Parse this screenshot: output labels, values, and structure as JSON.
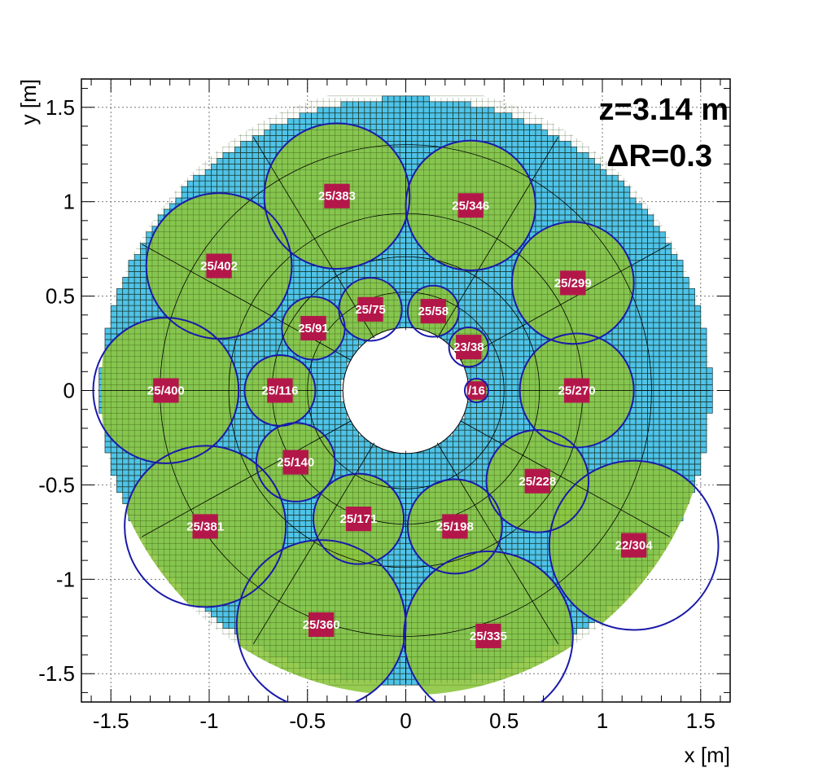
{
  "chart_data": {
    "type": "scatter",
    "title": "",
    "xlabel": "x [m]",
    "ylabel": "y [m]",
    "xlim": [
      -1.65,
      1.65
    ],
    "ylim": [
      -1.65,
      1.65
    ],
    "xticks": [
      -1.5,
      -1,
      -0.5,
      0,
      0.5,
      1,
      1.5
    ],
    "xtick_labels": [
      "-1.5",
      "-1",
      "-0.5",
      "0",
      "0.5",
      "1",
      "1.5"
    ],
    "yticks": [
      -1.5,
      -1,
      -0.5,
      0,
      0.5,
      1,
      1.5
    ],
    "ytick_labels": [
      "-1.5",
      "-1",
      "-0.5",
      "0",
      "0.5",
      "1",
      "1.5"
    ],
    "grid": true,
    "annotations": [
      "z=3.14 m",
      "ΔR=0.3"
    ],
    "detector": {
      "outer_radius": 1.55,
      "inner_hole_radius": 0.32,
      "cell_size": 0.03,
      "cell_color": "#4fc3e8",
      "cell_border_color": "#103040",
      "covered_color": "#8cc63f",
      "reference_circle_radii": [
        0.5,
        0.68,
        0.9,
        1.25
      ],
      "spoke_angles_deg": [
        0,
        30,
        60,
        90,
        120,
        150,
        180,
        210,
        240,
        270,
        300,
        330
      ]
    },
    "circle_color": "#1a1aaa",
    "hotspot_color": "#b3174a",
    "series": [
      {
        "label": "25/383",
        "x": -0.35,
        "y": 1.03,
        "r": 0.37
      },
      {
        "label": "25/346",
        "x": 0.33,
        "y": 0.98,
        "r": 0.33
      },
      {
        "label": "25/402",
        "x": -0.95,
        "y": 0.66,
        "r": 0.37
      },
      {
        "label": "25/299",
        "x": 0.85,
        "y": 0.57,
        "r": 0.31
      },
      {
        "label": "25/75",
        "x": -0.18,
        "y": 0.43,
        "r": 0.16
      },
      {
        "label": "25/58",
        "x": 0.14,
        "y": 0.42,
        "r": 0.13
      },
      {
        "label": "25/91",
        "x": -0.47,
        "y": 0.33,
        "r": 0.16
      },
      {
        "label": "23/38",
        "x": 0.32,
        "y": 0.23,
        "r": 0.1
      },
      {
        "label": "25/400",
        "x": -1.22,
        "y": 0.0,
        "r": 0.37
      },
      {
        "label": "25/116",
        "x": -0.64,
        "y": 0.0,
        "r": 0.18
      },
      {
        "label": "/16",
        "x": 0.36,
        "y": 0.0,
        "r": 0.06
      },
      {
        "label": "25/270",
        "x": 0.87,
        "y": 0.0,
        "r": 0.29
      },
      {
        "label": "25/140",
        "x": -0.56,
        "y": -0.38,
        "r": 0.2
      },
      {
        "label": "25/228",
        "x": 0.67,
        "y": -0.48,
        "r": 0.26
      },
      {
        "label": "25/381",
        "x": -1.02,
        "y": -0.72,
        "r": 0.41
      },
      {
        "label": "25/171",
        "x": -0.24,
        "y": -0.68,
        "r": 0.23
      },
      {
        "label": "25/198",
        "x": 0.25,
        "y": -0.72,
        "r": 0.24
      },
      {
        "label": "22/304",
        "x": 1.16,
        "y": -0.82,
        "r": 0.43
      },
      {
        "label": "25/360",
        "x": -0.43,
        "y": -1.24,
        "r": 0.43
      },
      {
        "label": "25/335",
        "x": 0.42,
        "y": -1.3,
        "r": 0.43
      }
    ]
  }
}
